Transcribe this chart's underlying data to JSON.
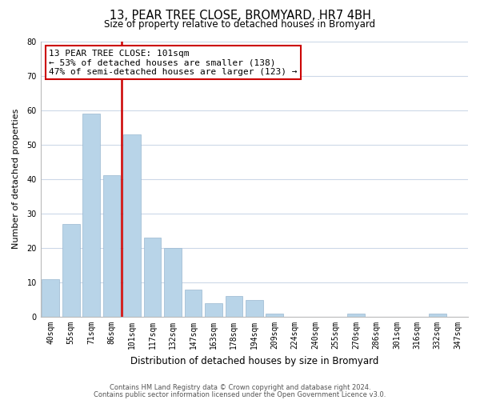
{
  "title": "13, PEAR TREE CLOSE, BROMYARD, HR7 4BH",
  "subtitle": "Size of property relative to detached houses in Bromyard",
  "xlabel": "Distribution of detached houses by size in Bromyard",
  "ylabel": "Number of detached properties",
  "categories": [
    "40sqm",
    "55sqm",
    "71sqm",
    "86sqm",
    "101sqm",
    "117sqm",
    "132sqm",
    "147sqm",
    "163sqm",
    "178sqm",
    "194sqm",
    "209sqm",
    "224sqm",
    "240sqm",
    "255sqm",
    "270sqm",
    "286sqm",
    "301sqm",
    "316sqm",
    "332sqm",
    "347sqm"
  ],
  "values": [
    11,
    27,
    59,
    41,
    53,
    23,
    20,
    8,
    4,
    6,
    5,
    1,
    0,
    0,
    0,
    1,
    0,
    0,
    0,
    1,
    0
  ],
  "bar_color": "#b8d4e8",
  "bar_edge_color": "#9ab8d0",
  "highlight_line_color": "#cc0000",
  "vline_x_index": 4,
  "ylim": [
    0,
    80
  ],
  "yticks": [
    0,
    10,
    20,
    30,
    40,
    50,
    60,
    70,
    80
  ],
  "annotation_title": "13 PEAR TREE CLOSE: 101sqm",
  "annotation_line1": "← 53% of detached houses are smaller (138)",
  "annotation_line2": "47% of semi-detached houses are larger (123) →",
  "annotation_box_color": "#ffffff",
  "annotation_box_edge": "#cc0000",
  "footer_line1": "Contains HM Land Registry data © Crown copyright and database right 2024.",
  "footer_line2": "Contains public sector information licensed under the Open Government Licence v3.0.",
  "background_color": "#ffffff",
  "grid_color": "#ccd8e8",
  "title_fontsize": 10.5,
  "subtitle_fontsize": 8.5,
  "xlabel_fontsize": 8.5,
  "ylabel_fontsize": 8.0,
  "tick_fontsize": 7.0,
  "annotation_fontsize": 8.0,
  "footer_fontsize": 6.0
}
